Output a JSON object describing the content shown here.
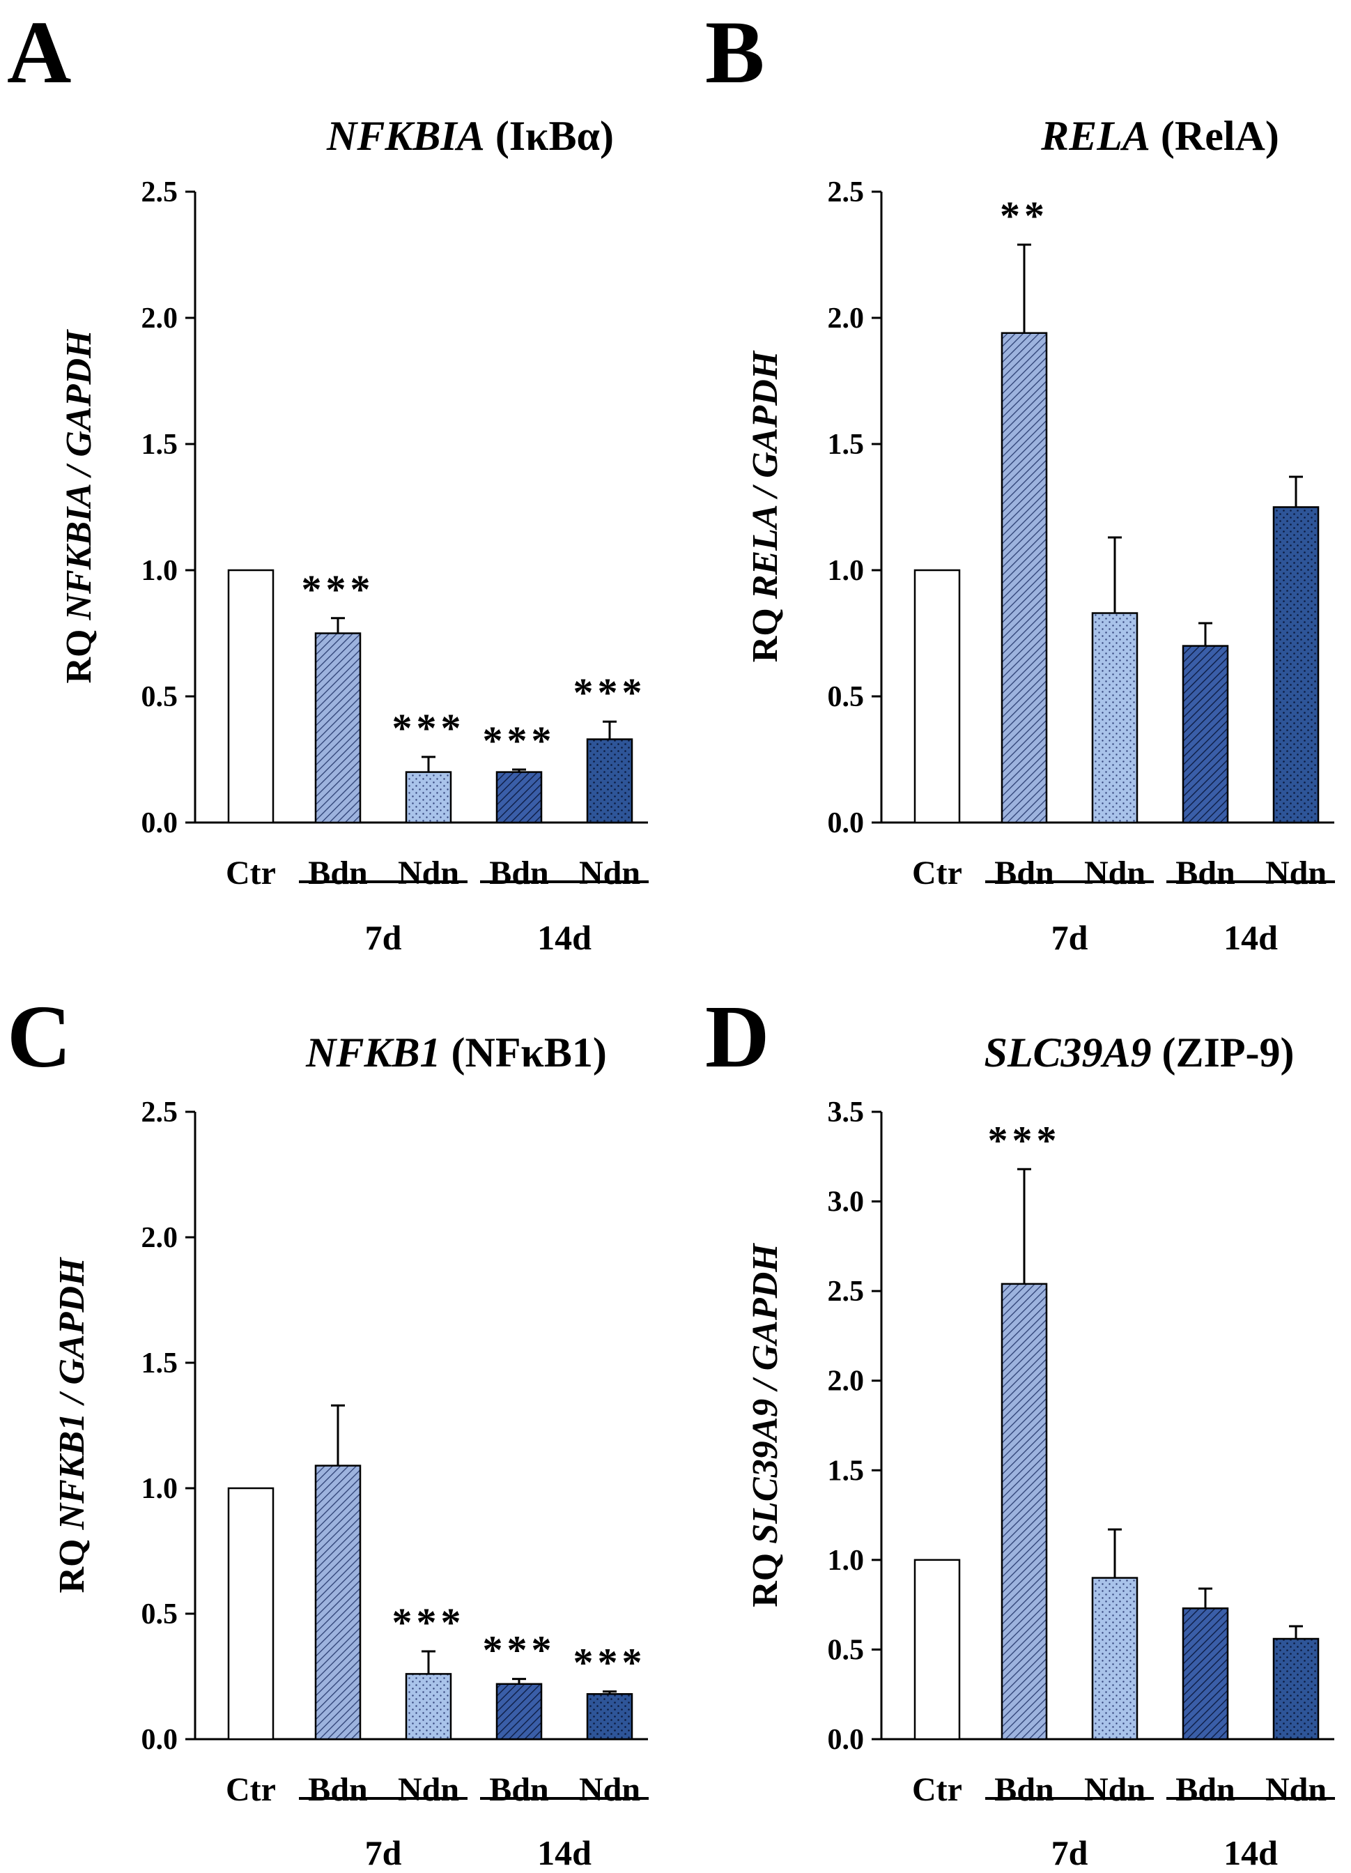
{
  "chart_data": [
    {
      "panel": "A",
      "type": "bar",
      "title_gene": "NFKBIA",
      "title_protein": "(IκBα)",
      "ylabel_prefix": "RQ ",
      "ylabel_gene": "NFKBIA",
      "ylabel_suffix": " / GAPDH",
      "ylim": [
        0,
        2.5
      ],
      "yticks": [
        "0.0",
        "0.5",
        "1.0",
        "1.5",
        "2.0",
        "2.5"
      ],
      "categories": [
        "Ctr",
        "Bdn",
        "Ndn",
        "Bdn",
        "Ndn"
      ],
      "groups": [
        {
          "label": "7d"
        },
        {
          "label": "14d"
        }
      ],
      "values": [
        1.0,
        0.75,
        0.2,
        0.2,
        0.33
      ],
      "errors": [
        0,
        0.06,
        0.06,
        0.01,
        0.07
      ],
      "significance": [
        "",
        "***",
        "***",
        "***",
        "***"
      ]
    },
    {
      "panel": "B",
      "type": "bar",
      "title_gene": "RELA",
      "title_protein": "(RelA)",
      "ylabel_prefix": "RQ ",
      "ylabel_gene": "RELA",
      "ylabel_suffix": " / GAPDH",
      "ylim": [
        0,
        2.5
      ],
      "yticks": [
        "0.0",
        "0.5",
        "1.0",
        "1.5",
        "2.0",
        "2.5"
      ],
      "categories": [
        "Ctr",
        "Bdn",
        "Ndn",
        "Bdn",
        "Ndn"
      ],
      "groups": [
        {
          "label": "7d"
        },
        {
          "label": "14d"
        }
      ],
      "values": [
        1.0,
        1.94,
        0.83,
        0.7,
        1.25
      ],
      "errors": [
        0,
        0.35,
        0.3,
        0.09,
        0.12
      ],
      "significance": [
        "",
        "**",
        "",
        "",
        ""
      ]
    },
    {
      "panel": "C",
      "type": "bar",
      "title_gene": "NFKB1",
      "title_protein": "(NFκB1)",
      "ylabel_prefix": "RQ ",
      "ylabel_gene": "NFKB1",
      "ylabel_suffix": " / GAPDH",
      "ylim": [
        0,
        2.5
      ],
      "yticks": [
        "0.0",
        "0.5",
        "1.0",
        "1.5",
        "2.0",
        "2.5"
      ],
      "categories": [
        "Ctr",
        "Bdn",
        "Ndn",
        "Bdn",
        "Ndn"
      ],
      "groups": [
        {
          "label": "7d"
        },
        {
          "label": "14d"
        }
      ],
      "values": [
        1.0,
        1.09,
        0.26,
        0.22,
        0.18
      ],
      "errors": [
        0,
        0.24,
        0.09,
        0.02,
        0.01
      ],
      "significance": [
        "",
        "",
        "***",
        "***",
        "***"
      ]
    },
    {
      "panel": "D",
      "type": "bar",
      "title_gene": "SLC39A9",
      "title_protein": "(ZIP-9)",
      "ylabel_prefix": "RQ ",
      "ylabel_gene": "SLC39A9",
      "ylabel_suffix": " / GAPDH",
      "ylim": [
        0,
        3.5
      ],
      "yticks": [
        "0.0",
        "0.5",
        "1.0",
        "1.5",
        "2.0",
        "2.5",
        "3.0",
        "3.5"
      ],
      "categories": [
        "Ctr",
        "Bdn",
        "Ndn",
        "Bdn",
        "Ndn"
      ],
      "groups": [
        {
          "label": "7d"
        },
        {
          "label": "14d"
        }
      ],
      "values": [
        1.0,
        2.54,
        0.9,
        0.73,
        0.56
      ],
      "errors": [
        0,
        0.64,
        0.27,
        0.11,
        0.07
      ],
      "significance": [
        "",
        "***",
        "",
        "",
        ""
      ]
    }
  ],
  "colors": {
    "ctr_fill": "#ffffff",
    "bdn_7d": "#8fa8d8",
    "ndn_7d": "#a9c3ea",
    "bdn_14d": "#2f4f9a",
    "ndn_14d": "#2e5598",
    "axis": "#000000"
  }
}
